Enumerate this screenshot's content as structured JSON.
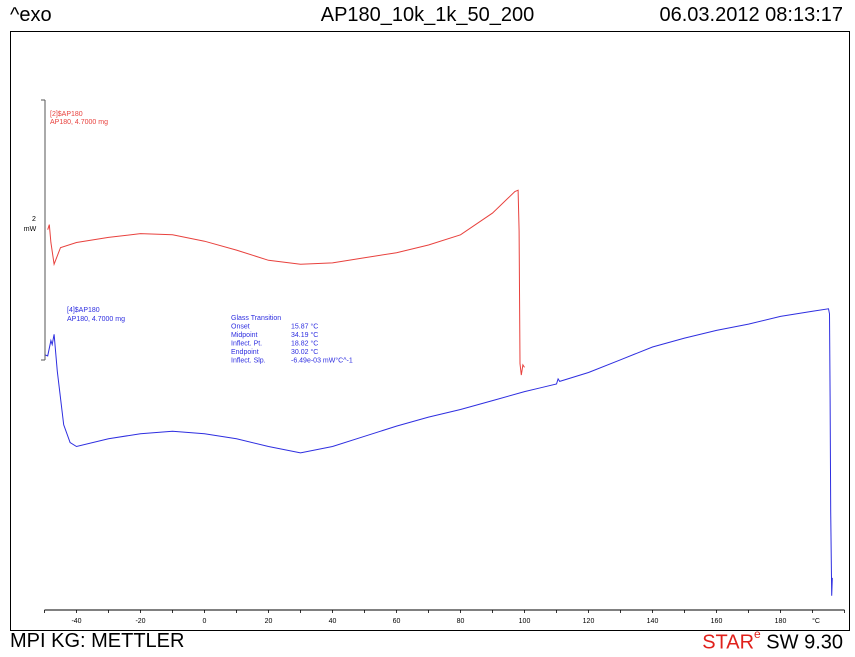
{
  "header": {
    "exo_label": "^exo",
    "title": "AP180_10k_1k_50_200",
    "timestamp": "06.03.2012 08:13:17"
  },
  "footer": {
    "lab": "MPI KG: METTLER",
    "software_star": "STAR",
    "software_sup": "e",
    "software_rest": " SW 9.30"
  },
  "colors": {
    "curve_1": "#e8413d",
    "curve_2": "#2e2ee0"
  },
  "chart_data": {
    "type": "line",
    "title": "AP180_10k_1k_50_200",
    "xlabel": "",
    "x_unit": "°C",
    "xlim": [
      -50,
      200
    ],
    "x_ticks": [
      -40,
      -20,
      0,
      20,
      40,
      60,
      80,
      100,
      120,
      140,
      160,
      180
    ],
    "y_scale_bar": {
      "value": "2",
      "unit": "mW"
    },
    "grid": false,
    "series": [
      {
        "name": "[2]$AP180",
        "label_line2": "AP180, 4.7000 mg",
        "color": "#e8413d",
        "points": [
          [
            -49,
            2.05
          ],
          [
            -48.5,
            2.25
          ],
          [
            -48,
            1.55
          ],
          [
            -47,
            0.7
          ],
          [
            -45,
            1.35
          ],
          [
            -40,
            1.55
          ],
          [
            -30,
            1.75
          ],
          [
            -20,
            1.9
          ],
          [
            -10,
            1.85
          ],
          [
            0,
            1.6
          ],
          [
            10,
            1.25
          ],
          [
            20,
            0.85
          ],
          [
            30,
            0.7
          ],
          [
            40,
            0.75
          ],
          [
            50,
            0.95
          ],
          [
            60,
            1.15
          ],
          [
            70,
            1.45
          ],
          [
            80,
            1.85
          ],
          [
            90,
            2.7
          ],
          [
            97,
            3.55
          ],
          [
            98,
            3.6
          ],
          [
            98.3,
            2.0
          ],
          [
            98.6,
            -3.2
          ],
          [
            99,
            -3.65
          ],
          [
            99.5,
            -3.25
          ],
          [
            100,
            -3.35
          ]
        ]
      },
      {
        "name": "[4]$AP180",
        "label_line2": "AP180, 4.7000 mg",
        "color": "#2e2ee0",
        "points": [
          [
            -50,
            -2.85
          ],
          [
            -49,
            -2.9
          ],
          [
            -48,
            -2.3
          ],
          [
            -47.6,
            -2.45
          ],
          [
            -47,
            -2.05
          ],
          [
            -46,
            -3.5
          ],
          [
            -44,
            -5.6
          ],
          [
            -42,
            -6.3
          ],
          [
            -40,
            -6.45
          ],
          [
            -30,
            -6.15
          ],
          [
            -20,
            -5.95
          ],
          [
            -10,
            -5.85
          ],
          [
            0,
            -5.95
          ],
          [
            10,
            -6.15
          ],
          [
            20,
            -6.45
          ],
          [
            30,
            -6.7
          ],
          [
            40,
            -6.45
          ],
          [
            50,
            -6.05
          ],
          [
            60,
            -5.65
          ],
          [
            70,
            -5.3
          ],
          [
            80,
            -5.0
          ],
          [
            90,
            -4.65
          ],
          [
            100,
            -4.3
          ],
          [
            105,
            -4.15
          ],
          [
            110,
            -4.0
          ],
          [
            110.5,
            -3.8
          ],
          [
            111,
            -3.9
          ],
          [
            120,
            -3.55
          ],
          [
            130,
            -3.05
          ],
          [
            140,
            -2.55
          ],
          [
            150,
            -2.2
          ],
          [
            160,
            -1.9
          ],
          [
            170,
            -1.65
          ],
          [
            180,
            -1.35
          ],
          [
            190,
            -1.15
          ],
          [
            195,
            -1.05
          ],
          [
            195.3,
            -1.25
          ],
          [
            195.5,
            -4.5
          ],
          [
            195.7,
            -9.0
          ],
          [
            196,
            -12.3
          ],
          [
            196.2,
            -11.6
          ]
        ]
      }
    ],
    "annotation": {
      "title": "Glass Transition",
      "rows": [
        {
          "label": "Onset",
          "value": "15.87 °C"
        },
        {
          "label": "Midpoint",
          "value": "34.19 °C"
        },
        {
          "label": "Inflect. Pt.",
          "value": "18.82 °C"
        },
        {
          "label": "Endpoint",
          "value": "30.02 °C"
        },
        {
          "label": "Inflect. Slp.",
          "value": "-6.49e-03 mW°C^-1"
        }
      ]
    }
  }
}
